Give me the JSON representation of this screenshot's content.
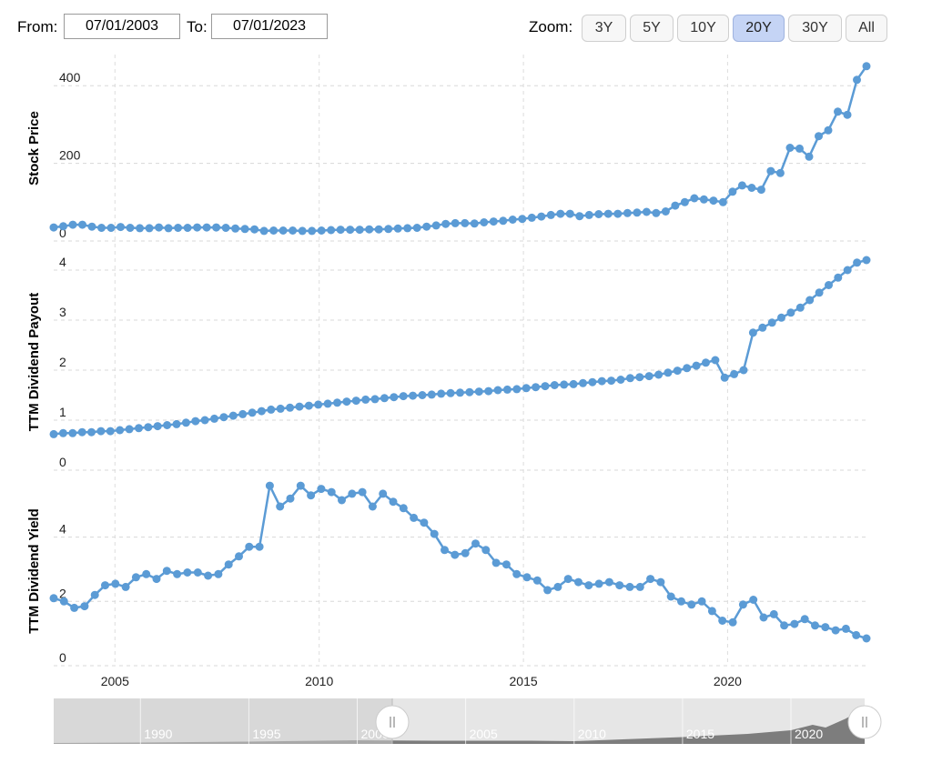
{
  "range": {
    "from_label": "From:",
    "from_value": "07/01/2003",
    "to_label": "To:",
    "to_value": "07/01/2023"
  },
  "zoom": {
    "label": "Zoom:",
    "buttons": [
      "3Y",
      "5Y",
      "10Y",
      "20Y",
      "30Y",
      "All"
    ],
    "active": "20Y"
  },
  "colors": {
    "series": "#5b9bd5",
    "navigator_fill": "#7d7d7d",
    "navigator_bg": "#e6e6e6",
    "navigator_mask": "#cccccc"
  },
  "chart_data": {
    "type": "line",
    "x_start": 2003.5,
    "x_end": 2023.4,
    "x_ticks": [
      2005,
      2010,
      2015,
      2020
    ],
    "navigator_ticks": [
      1990,
      1995,
      2000,
      2005,
      2010,
      2015,
      2020
    ],
    "panels": [
      {
        "name": "Stock Price",
        "ylabel": "Stock Price",
        "ylim": [
          0,
          480
        ],
        "yticks": [
          0,
          200,
          400
        ],
        "values": [
          35,
          38,
          42,
          42,
          37,
          34,
          34,
          36,
          34,
          33,
          33,
          35,
          33,
          34,
          34,
          35,
          35,
          35,
          34,
          32,
          31,
          30,
          26,
          27,
          27,
          27,
          26,
          26,
          27,
          28,
          29,
          29,
          29,
          30,
          30,
          31,
          32,
          33,
          34,
          37,
          40,
          44,
          46,
          46,
          45,
          48,
          50,
          52,
          55,
          57,
          60,
          63,
          67,
          70,
          70,
          64,
          67,
          69,
          70,
          70,
          72,
          73,
          75,
          72,
          76,
          91,
          100,
          110,
          107,
          104,
          100,
          127,
          143,
          137,
          132,
          180,
          175,
          240,
          238,
          217,
          270,
          285,
          333,
          325,
          415,
          450
        ]
      },
      {
        "name": "TTM Dividend Payout",
        "ylabel": "TTM Dividend Payout",
        "ylim": [
          0,
          4.4
        ],
        "yticks": [
          0,
          1,
          2,
          3,
          4
        ],
        "values": [
          0.72,
          0.74,
          0.74,
          0.76,
          0.76,
          0.78,
          0.78,
          0.8,
          0.82,
          0.84,
          0.86,
          0.88,
          0.9,
          0.92,
          0.95,
          0.98,
          1.0,
          1.03,
          1.06,
          1.09,
          1.12,
          1.15,
          1.18,
          1.21,
          1.23,
          1.25,
          1.27,
          1.29,
          1.31,
          1.33,
          1.35,
          1.37,
          1.39,
          1.41,
          1.42,
          1.44,
          1.46,
          1.48,
          1.49,
          1.5,
          1.51,
          1.53,
          1.54,
          1.55,
          1.56,
          1.57,
          1.58,
          1.6,
          1.61,
          1.62,
          1.64,
          1.66,
          1.68,
          1.7,
          1.71,
          1.72,
          1.74,
          1.76,
          1.78,
          1.79,
          1.81,
          1.84,
          1.86,
          1.88,
          1.91,
          1.95,
          1.99,
          2.04,
          2.09,
          2.15,
          2.2,
          1.85,
          1.92,
          2.0,
          2.75,
          2.85,
          2.95,
          3.05,
          3.15,
          3.25,
          3.4,
          3.55,
          3.7,
          3.85,
          4.0,
          4.15,
          4.2
        ]
      },
      {
        "name": "TTM Dividend Yield",
        "ylabel": "TTM Dividend Yield",
        "ylim": [
          0,
          5.8
        ],
        "yticks": [
          0,
          2,
          4
        ],
        "values": [
          2.1,
          2.0,
          1.8,
          1.85,
          2.2,
          2.5,
          2.55,
          2.45,
          2.75,
          2.85,
          2.7,
          2.95,
          2.85,
          2.9,
          2.9,
          2.8,
          2.85,
          3.15,
          3.4,
          3.7,
          3.7,
          5.6,
          4.95,
          5.2,
          5.6,
          5.3,
          5.5,
          5.4,
          5.15,
          5.35,
          5.4,
          4.95,
          5.35,
          5.1,
          4.9,
          4.6,
          4.45,
          4.1,
          3.6,
          3.45,
          3.5,
          3.8,
          3.6,
          3.2,
          3.15,
          2.85,
          2.75,
          2.65,
          2.35,
          2.45,
          2.7,
          2.6,
          2.5,
          2.55,
          2.6,
          2.5,
          2.45,
          2.45,
          2.7,
          2.6,
          2.15,
          2.0,
          1.9,
          2.0,
          1.7,
          1.4,
          1.35,
          1.9,
          2.05,
          1.5,
          1.6,
          1.25,
          1.3,
          1.45,
          1.25,
          1.2,
          1.1,
          1.15,
          0.95,
          0.85
        ]
      }
    ]
  }
}
